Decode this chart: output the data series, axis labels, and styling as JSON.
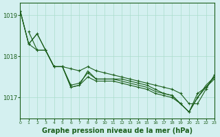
{
  "bg_color": "#d4f0f0",
  "line_color": "#1a5e1a",
  "grid_color": "#aaddcc",
  "title": "Graphe pression niveau de la mer (hPa)",
  "xlim": [
    0,
    23
  ],
  "ylim_min": 1016.5,
  "ylim_max": 1019.3,
  "yticks": [
    1017,
    1018,
    1019
  ],
  "xtick_labels": [
    "0",
    "1",
    "2",
    "3",
    "4",
    "5",
    "6",
    "7",
    "8",
    "9",
    "10",
    "11",
    "12",
    "13",
    "14",
    "15",
    "16",
    "17",
    "18",
    "19",
    "20",
    "21",
    "22",
    "23"
  ],
  "lines": [
    {
      "x": [
        0,
        1,
        2,
        3,
        4,
        5,
        6,
        7,
        8,
        9,
        10,
        11,
        12,
        13,
        14,
        15,
        16,
        17,
        18,
        19,
        20,
        21,
        22,
        23
      ],
      "y": [
        1019.1,
        1018.3,
        1018.55,
        1018.15,
        1017.75,
        1017.75,
        1017.3,
        1017.35,
        1017.6,
        1017.45,
        1017.45,
        1017.45,
        1017.45,
        1017.4,
        1017.35,
        1017.3,
        1017.2,
        1017.1,
        1017.05,
        1016.85,
        1016.65,
        1017.0,
        1017.25,
        1017.45
      ],
      "marker": "+"
    },
    {
      "x": [
        0,
        1,
        2,
        3,
        4,
        5,
        6,
        7,
        8,
        9,
        10,
        11,
        12,
        13,
        14,
        15,
        16,
        17,
        18,
        19,
        20,
        21,
        22,
        23
      ],
      "y": [
        1019.1,
        1018.3,
        1018.15,
        1018.15,
        1017.75,
        1017.75,
        1017.25,
        1017.3,
        1017.5,
        1017.4,
        1017.4,
        1017.4,
        1017.35,
        1017.3,
        1017.25,
        1017.2,
        1017.1,
        1017.05,
        1017.0,
        1016.85,
        1016.65,
        1017.1,
        1017.25,
        1017.5
      ],
      "marker": "+"
    },
    {
      "x": [
        1,
        2,
        3,
        4,
        5,
        6,
        7,
        8,
        9,
        10,
        11,
        12,
        13,
        14,
        15,
        16,
        17,
        18,
        19,
        20,
        21,
        22,
        23
      ],
      "y": [
        1018.6,
        1018.15,
        1018.15,
        1017.75,
        1017.75,
        1017.7,
        1017.65,
        1017.75,
        1017.65,
        1017.6,
        1017.55,
        1017.5,
        1017.45,
        1017.4,
        1017.35,
        1017.3,
        1017.25,
        1017.2,
        1017.1,
        1016.85,
        1016.85,
        1017.2,
        1017.55
      ],
      "marker": "+"
    },
    {
      "x": [
        0,
        1,
        2,
        3,
        4,
        5,
        6,
        7,
        8,
        9,
        10,
        11,
        12,
        13,
        14,
        15,
        16,
        17,
        18,
        19,
        20,
        21,
        22,
        23
      ],
      "y": [
        1019.1,
        1018.3,
        1018.55,
        1018.15,
        1017.75,
        1017.75,
        1017.25,
        1017.3,
        1017.65,
        1017.45,
        1017.45,
        1017.45,
        1017.4,
        1017.35,
        1017.3,
        1017.25,
        1017.15,
        1017.1,
        1017.05,
        1016.85,
        1016.65,
        1017.0,
        1017.3,
        1017.5
      ],
      "marker": null
    }
  ]
}
